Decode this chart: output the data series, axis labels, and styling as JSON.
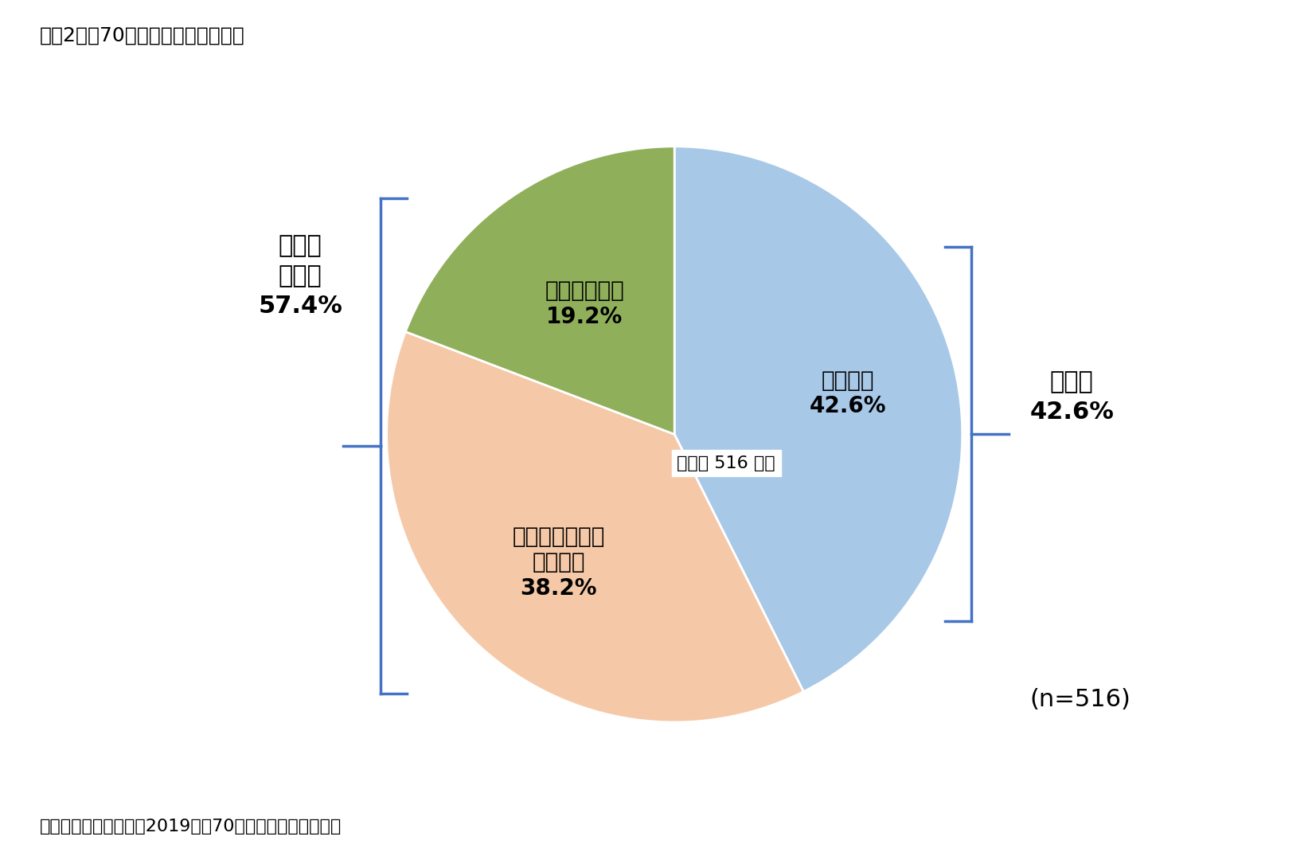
{
  "title": "図表2　「70歳定年」に対する意見",
  "source": "資料）定年後研究所（2019）「70歳定年に関する調査」",
  "slices": [
    42.6,
    38.2,
    19.2
  ],
  "colors": [
    "#a8c8e8",
    "#f5c9a8",
    "#8faf5a"
  ],
  "startangle": 90,
  "center_label": "（対象 516 人）",
  "left_bracket_line1": "アンチ",
  "left_bracket_line2": "歓迎派",
  "left_bracket_pct": "57.4%",
  "right_bracket_label": "歓迎派",
  "right_bracket_pct": "42.6%",
  "n_label": "(n=516)",
  "background_color": "#ffffff",
  "title_fontsize": 18,
  "label_fontsize": 20,
  "bracket_fontsize": 22,
  "source_fontsize": 16,
  "bracket_color": "#4472c4"
}
